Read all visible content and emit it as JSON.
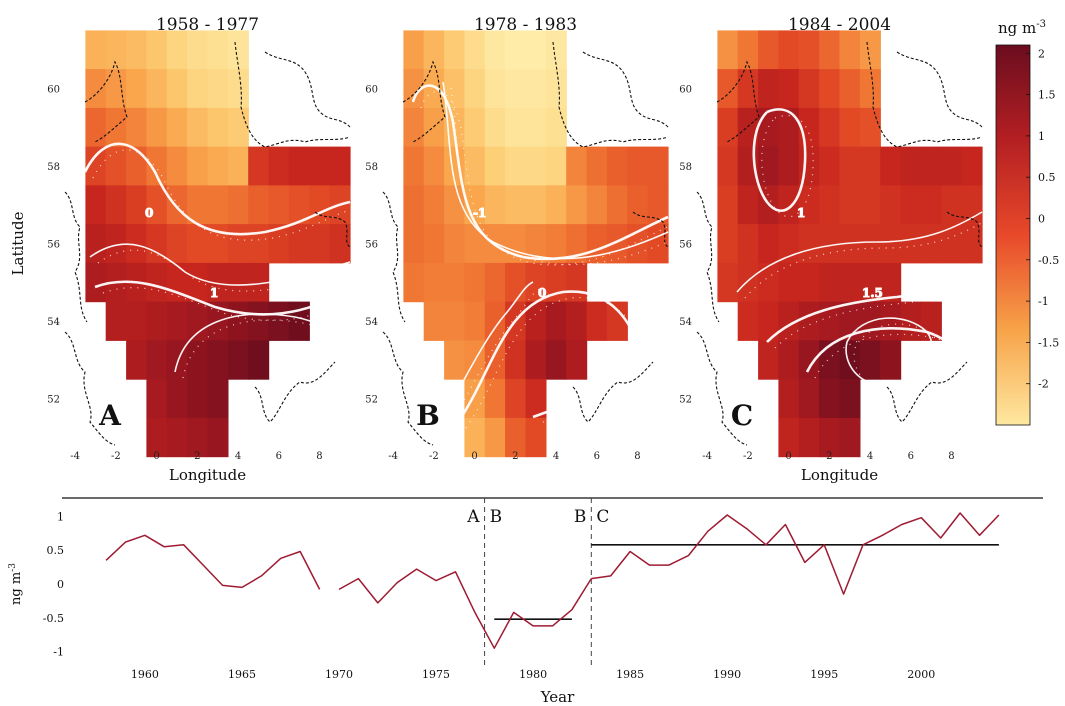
{
  "colorbar": {
    "title": "ng m",
    "title_sup": "-3",
    "ticks": [
      "2",
      "1.5",
      "1",
      "0.5",
      "0",
      "-0.5",
      "-1",
      "-1.5",
      "-2"
    ],
    "range": [
      -2.5,
      2.1
    ]
  },
  "maps": [
    {
      "title": "1958 - 1977",
      "letter": "A",
      "xlabel": "Longitude",
      "ylabel": "Latitude",
      "xticks": [
        "-4",
        "-2",
        "0",
        "2",
        "4",
        "6",
        "8"
      ],
      "yticks": [
        "60",
        "58",
        "56",
        "54",
        "52"
      ]
    },
    {
      "title": "1978 - 1983",
      "letter": "B",
      "xlabel": "",
      "ylabel": "",
      "xticks": [
        "-4",
        "-2",
        "0",
        "2",
        "4",
        "6",
        "8"
      ],
      "yticks": [
        "60",
        "58",
        "56",
        "54",
        "52"
      ]
    },
    {
      "title": "1984 - 2004",
      "letter": "C",
      "xlabel": "Longitude",
      "ylabel": "",
      "xticks": [
        "-4",
        "-2",
        "0",
        "2",
        "4",
        "6",
        "8"
      ],
      "yticks": [
        "60",
        "58",
        "56",
        "54",
        "52"
      ]
    }
  ],
  "chart_data": [
    {
      "type": "heatmap",
      "title": "1958 - 1977",
      "panel": "A",
      "xlabel": "Longitude",
      "ylabel": "Latitude",
      "xlim": [
        -4.5,
        9.5
      ],
      "ylim": [
        50.8,
        61.2
      ],
      "grid": {
        "lon": [
          -2.5,
          -1.5,
          -0.5,
          0.5,
          1.5,
          2.5,
          3.5,
          4.5,
          5.5,
          6.5,
          7.5,
          8.5,
          9.5
        ],
        "lat": [
          61,
          60,
          59,
          58,
          57,
          56,
          55,
          54,
          53,
          52,
          51
        ],
        "values": [
          [
            -1.2,
            -1.3,
            -1.4,
            -1.6,
            -1.9,
            -2.1,
            -2.2,
            -2.3,
            null,
            null,
            null,
            null,
            null
          ],
          [
            -0.6,
            -0.8,
            -1.0,
            -1.3,
            -1.6,
            -1.9,
            -2.0,
            -2.1,
            null,
            null,
            null,
            null,
            null
          ],
          [
            -0.1,
            -0.3,
            -0.5,
            -0.8,
            -1.1,
            -1.4,
            -1.6,
            -1.7,
            null,
            null,
            null,
            null,
            null
          ],
          [
            0.4,
            0.2,
            0.0,
            -0.3,
            -0.6,
            -0.9,
            -1.1,
            -1.2,
            0.6,
            0.8,
            0.9,
            0.9,
            0.9
          ],
          [
            0.9,
            0.7,
            0.5,
            0.2,
            -0.1,
            -0.3,
            -0.3,
            -0.2,
            0.0,
            0.1,
            0.2,
            0.3,
            0.4
          ],
          [
            1.1,
            1.0,
            0.8,
            0.6,
            0.4,
            0.3,
            0.3,
            0.4,
            0.4,
            0.5,
            0.6,
            0.6,
            0.7
          ],
          [
            1.3,
            1.2,
            1.1,
            1.0,
            0.9,
            0.9,
            1.0,
            1.0,
            1.0,
            null,
            null,
            null,
            null
          ],
          [
            null,
            1.2,
            1.2,
            1.3,
            1.4,
            1.5,
            1.6,
            1.7,
            1.8,
            1.9,
            2.0,
            null,
            null
          ],
          [
            null,
            null,
            1.3,
            1.5,
            1.6,
            1.7,
            1.8,
            1.9,
            2.0,
            null,
            null,
            null,
            null
          ],
          [
            null,
            null,
            null,
            1.4,
            1.6,
            1.7,
            1.8,
            null,
            null,
            null,
            null,
            null,
            null
          ],
          [
            null,
            null,
            null,
            1.3,
            1.4,
            1.5,
            1.6,
            null,
            null,
            null,
            null,
            null,
            null
          ]
        ]
      },
      "contour_labels": [
        "0",
        "1"
      ]
    },
    {
      "type": "heatmap",
      "title": "1978 - 1983",
      "panel": "B",
      "xlim": [
        -4.5,
        9.5
      ],
      "ylim": [
        50.8,
        61.2
      ],
      "grid": {
        "lon": [
          -2.5,
          -1.5,
          -0.5,
          0.5,
          1.5,
          2.5,
          3.5,
          4.5,
          5.5,
          6.5,
          7.5,
          8.5,
          9.5
        ],
        "lat": [
          61,
          60,
          59,
          58,
          57,
          56,
          55,
          54,
          53,
          52,
          51
        ],
        "values": [
          [
            -0.9,
            -1.3,
            -1.7,
            -2.1,
            -2.4,
            -2.5,
            -2.5,
            -2.4,
            null,
            null,
            null,
            null,
            null
          ],
          [
            -0.7,
            -1.1,
            -1.5,
            -1.9,
            -2.3,
            -2.4,
            -2.4,
            -2.3,
            null,
            null,
            null,
            null,
            null
          ],
          [
            -0.5,
            -0.9,
            -1.3,
            -1.7,
            -2.1,
            -2.3,
            -2.3,
            -2.2,
            null,
            null,
            null,
            null,
            null
          ],
          [
            -0.3,
            -0.6,
            -1.0,
            -1.4,
            -1.8,
            -2.0,
            -2.0,
            -1.9,
            -0.5,
            -0.2,
            0.0,
            0.1,
            0.1
          ],
          [
            -0.2,
            -0.4,
            -0.7,
            -1.0,
            -1.3,
            -1.4,
            -1.4,
            -1.2,
            -0.8,
            -0.5,
            -0.2,
            0.0,
            0.1
          ],
          [
            -0.2,
            -0.3,
            -0.5,
            -0.6,
            -0.6,
            -0.6,
            -0.5,
            -0.4,
            -0.2,
            0.0,
            0.1,
            0.2,
            0.3
          ],
          [
            -0.3,
            -0.4,
            -0.4,
            -0.3,
            -0.1,
            0.2,
            0.4,
            0.5,
            0.6,
            null,
            null,
            null,
            null
          ],
          [
            null,
            -0.5,
            -0.5,
            -0.4,
            0.0,
            0.6,
            1.1,
            1.4,
            1.2,
            0.8,
            0.6,
            null,
            null
          ],
          [
            null,
            null,
            -0.7,
            -0.6,
            0.0,
            0.7,
            1.3,
            1.6,
            1.3,
            null,
            null,
            null,
            null
          ],
          [
            null,
            null,
            null,
            -0.9,
            -0.3,
            0.4,
            0.8,
            null,
            null,
            null,
            null,
            null,
            null
          ],
          [
            null,
            null,
            null,
            -1.2,
            -0.8,
            0.0,
            0.3,
            null,
            null,
            null,
            null,
            null,
            null
          ]
        ]
      },
      "contour_labels": [
        "-1",
        "0"
      ]
    },
    {
      "type": "heatmap",
      "title": "1984 - 2004",
      "panel": "C",
      "xlabel": "Longitude",
      "xlim": [
        -4.5,
        9.5
      ],
      "ylim": [
        50.8,
        61.2
      ],
      "grid": {
        "lon": [
          -2.5,
          -1.5,
          -0.5,
          0.5,
          1.5,
          2.5,
          3.5,
          4.5,
          5.5,
          6.5,
          7.5,
          8.5,
          9.5
        ],
        "lat": [
          61,
          60,
          59,
          58,
          57,
          56,
          55,
          54,
          53,
          52,
          51
        ],
        "values": [
          [
            -0.7,
            -0.3,
            0.1,
            0.3,
            0.2,
            -0.1,
            -0.5,
            -0.8,
            null,
            null,
            null,
            null,
            null
          ],
          [
            0.1,
            0.6,
            1.0,
            0.9,
            0.6,
            0.3,
            0.0,
            -0.3,
            null,
            null,
            null,
            null,
            null
          ],
          [
            0.5,
            1.1,
            1.4,
            1.3,
            0.9,
            0.6,
            0.3,
            0.2,
            null,
            null,
            null,
            null,
            null
          ],
          [
            0.6,
            1.2,
            1.5,
            1.3,
            1.0,
            0.8,
            0.6,
            0.6,
            0.9,
            1.0,
            1.0,
            1.0,
            0.9
          ],
          [
            0.5,
            1.0,
            1.2,
            1.0,
            0.8,
            0.7,
            0.6,
            0.6,
            0.7,
            0.8,
            0.8,
            0.7,
            0.7
          ],
          [
            0.5,
            0.7,
            0.9,
            0.8,
            0.7,
            0.7,
            0.7,
            0.7,
            0.7,
            0.7,
            0.7,
            0.7,
            0.7
          ],
          [
            0.6,
            0.7,
            0.8,
            0.9,
            0.9,
            1.0,
            1.0,
            1.0,
            1.0,
            null,
            null,
            null,
            null
          ],
          [
            null,
            0.8,
            0.9,
            1.1,
            1.3,
            1.4,
            1.5,
            1.5,
            1.4,
            1.2,
            1.1,
            null,
            null
          ],
          [
            null,
            null,
            1.0,
            1.3,
            1.6,
            1.9,
            2.0,
            1.9,
            1.7,
            null,
            null,
            null,
            null
          ],
          [
            null,
            null,
            null,
            1.2,
            1.5,
            1.8,
            1.9,
            null,
            null,
            null,
            null,
            null,
            null
          ],
          [
            null,
            null,
            null,
            1.0,
            1.2,
            1.4,
            1.5,
            null,
            null,
            null,
            null,
            null,
            null
          ]
        ]
      },
      "contour_labels": [
        "1",
        "1.5"
      ]
    },
    {
      "type": "line",
      "xlabel": "Year",
      "ylabel": "ng m-3",
      "ylabel_sup": "-3",
      "xlim": [
        1956.5,
        2005.5
      ],
      "ylim": [
        -1.05,
        1.05
      ],
      "xticks": [
        "1960",
        "1965",
        "1970",
        "1975",
        "1980",
        "1985",
        "1990",
        "1995",
        "2000"
      ],
      "yticks": [
        "1",
        "0.5",
        "0",
        "-0.5",
        "-1"
      ],
      "segments": [
        {
          "x": [
            1958,
            1959,
            1960,
            1961,
            1962,
            1963,
            1964,
            1965,
            1966,
            1967,
            1968,
            1969
          ],
          "y": [
            0.35,
            0.62,
            0.72,
            0.55,
            0.58,
            0.28,
            -0.02,
            -0.05,
            0.12,
            0.38,
            0.48,
            -0.08
          ]
        },
        {
          "x": [
            1970,
            1971,
            1972,
            1973,
            1974,
            1975,
            1976,
            1977,
            1978,
            1979,
            1980,
            1981,
            1982,
            1983
          ],
          "y": [
            -0.08,
            0.08,
            -0.28,
            0.02,
            0.22,
            0.05,
            0.18,
            -0.42,
            -0.95,
            -0.42,
            -0.62,
            -0.62,
            -0.38,
            0.08
          ]
        },
        {
          "x": [
            1983,
            1984,
            1985,
            1986,
            1987,
            1988,
            1989,
            1990,
            1991,
            1992,
            1993,
            1994,
            1995,
            1996,
            1997,
            1998,
            1999,
            2000,
            2001,
            2002,
            2003,
            2004
          ],
          "y": [
            0.08,
            0.12,
            0.48,
            0.28,
            0.28,
            0.42,
            0.78,
            1.02,
            0.82,
            0.58,
            0.88,
            0.32,
            0.58,
            -0.15,
            0.58,
            0.72,
            0.88,
            0.98,
            0.68,
            1.05,
            0.72,
            1.02
          ]
        }
      ],
      "means": [
        {
          "x": [
            1978,
            1982
          ],
          "y": -0.52
        },
        {
          "x": [
            1983,
            2004
          ],
          "y": 0.58
        }
      ],
      "period_breaks": [
        {
          "x": 1977.5,
          "left": "A",
          "right": "B"
        },
        {
          "x": 1983.0,
          "left": "B",
          "right": "C"
        }
      ]
    }
  ]
}
